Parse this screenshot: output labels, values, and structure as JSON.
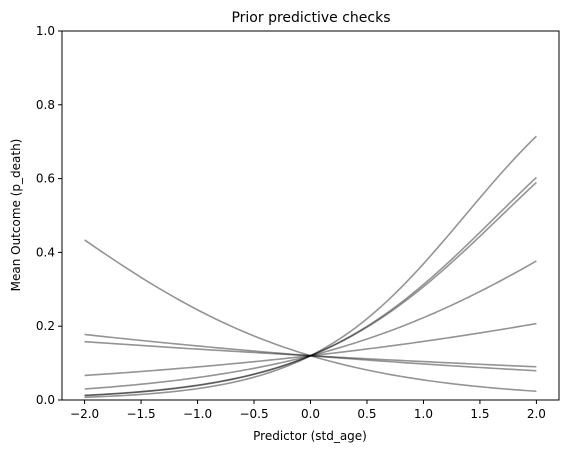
{
  "chart_data": {
    "type": "line",
    "title": "Prior predictive checks",
    "xlabel": "Predictor (std_age)",
    "ylabel": "Mean Outcome (p_death)",
    "xlim": [
      -2.2,
      2.2
    ],
    "ylim": [
      0.0,
      1.0
    ],
    "xticks": [
      "−2.0",
      "−1.5",
      "−1.0",
      "−0.5",
      "0.0",
      "0.5",
      "1.0",
      "1.5",
      "2.0"
    ],
    "xtick_values": [
      -2.0,
      -1.5,
      -1.0,
      -0.5,
      0.0,
      0.5,
      1.0,
      1.5,
      2.0
    ],
    "yticks": [
      "0.0",
      "0.2",
      "0.4",
      "0.6",
      "0.8",
      "1.0"
    ],
    "ytick_values": [
      0.0,
      0.2,
      0.4,
      0.6,
      0.8,
      1.0
    ],
    "grid": false,
    "line_color": "#000000",
    "line_opacity": 0.42,
    "curve_model": "logistic",
    "x_range": [
      -2.0,
      2.0
    ],
    "series": [
      {
        "values_at_x": {
          "-2": 0.437,
          "0": 0.12,
          "2": 0.024
        }
      },
      {
        "values_at_x": {
          "-2": 0.177,
          "0": 0.12,
          "2": 0.079
        }
      },
      {
        "values_at_x": {
          "-2": 0.158,
          "0": 0.12,
          "2": 0.09
        }
      },
      {
        "values_at_x": {
          "-2": 0.066,
          "0": 0.12,
          "2": 0.206
        }
      },
      {
        "values_at_x": {
          "-2": 0.03,
          "0": 0.12,
          "2": 0.378
        }
      },
      {
        "values_at_x": {
          "-2": 0.014,
          "0": 0.12,
          "2": 0.612
        }
      },
      {
        "values_at_x": {
          "-2": 0.012,
          "0": 0.12,
          "2": 0.602
        }
      },
      {
        "values_at_x": {
          "-2": 0.008,
          "0": 0.12,
          "2": 0.732
        }
      }
    ]
  }
}
